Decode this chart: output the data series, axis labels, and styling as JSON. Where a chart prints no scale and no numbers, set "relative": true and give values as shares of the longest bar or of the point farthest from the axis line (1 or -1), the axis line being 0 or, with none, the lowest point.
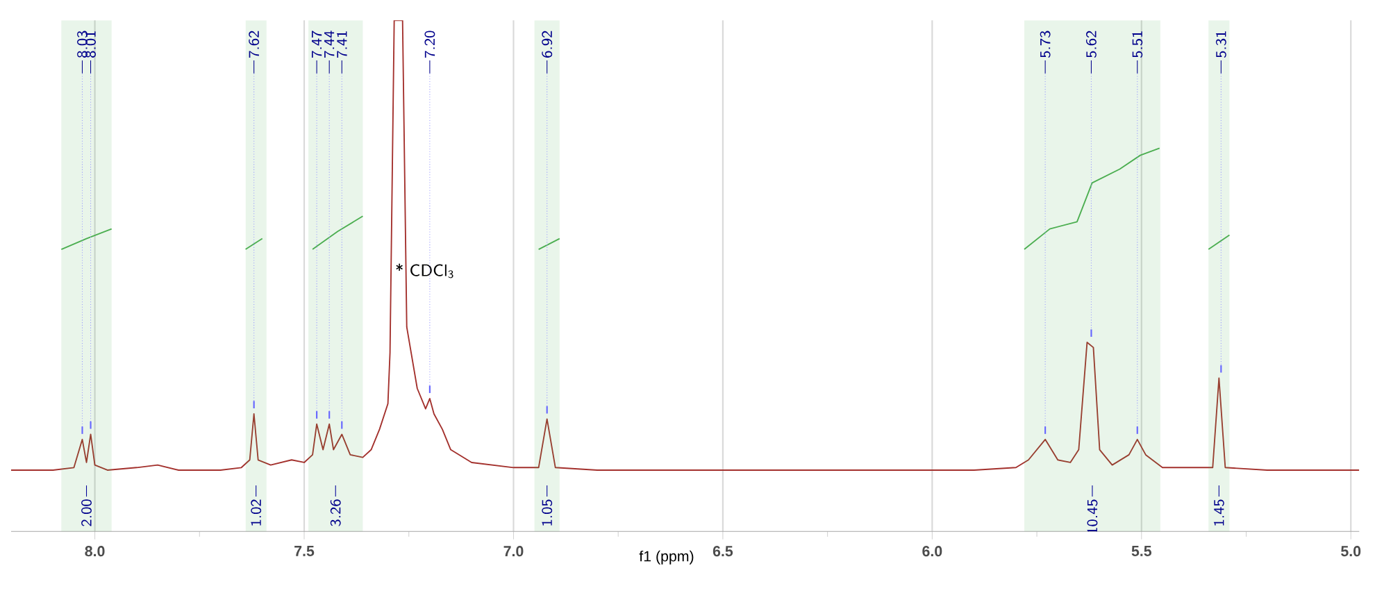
{
  "chart_data": {
    "type": "line",
    "relative": true,
    "xlabel": "f1 (ppm)",
    "grid": true,
    "marker": "none",
    "xlim": [
      8.2,
      4.98
    ],
    "xticks": [
      {
        "value": 8,
        "label": "8.0"
      },
      {
        "value": 7.75,
        "label": null
      },
      {
        "value": 7.5,
        "label": "7.5"
      },
      {
        "value": 7.25,
        "label": null
      },
      {
        "value": 7,
        "label": "7.0"
      },
      {
        "value": 6.75,
        "label": null
      },
      {
        "value": 6.5,
        "label": "6.5"
      },
      {
        "value": 6.25,
        "label": null
      },
      {
        "value": 6,
        "label": "6.0"
      },
      {
        "value": 5.75,
        "label": null
      },
      {
        "value": 5.5,
        "label": "5.5"
      },
      {
        "value": 5.25,
        "label": null
      },
      {
        "value": 5,
        "label": "5.0"
      }
    ],
    "series": [
      {
        "color": "#a3302c",
        "x": [
          8.2,
          8.1,
          8.05,
          8.03,
          8.02,
          8.01,
          8.0,
          7.97,
          7.9,
          7.85,
          7.8,
          7.7,
          7.65,
          7.63,
          7.62,
          7.61,
          7.58,
          7.53,
          7.5,
          7.48,
          7.47,
          7.455,
          7.44,
          7.43,
          7.41,
          7.39,
          7.36,
          7.34,
          7.32,
          7.3,
          7.295,
          7.285,
          7.265,
          7.255,
          7.23,
          7.21,
          7.2,
          7.19,
          7.17,
          7.15,
          7.1,
          7.0,
          6.94,
          6.92,
          6.9,
          6.8,
          6.5,
          6.2,
          5.9,
          5.8,
          5.77,
          5.73,
          5.7,
          5.67,
          5.65,
          5.63,
          5.615,
          5.6,
          5.57,
          5.53,
          5.51,
          5.49,
          5.45,
          5.33,
          5.315,
          5.3,
          5.2,
          4.98
        ],
        "values": [
          0.12,
          0.12,
          0.125,
          0.18,
          0.135,
          0.19,
          0.13,
          0.12,
          0.125,
          0.13,
          0.12,
          0.12,
          0.125,
          0.14,
          0.23,
          0.14,
          0.13,
          0.14,
          0.135,
          0.15,
          0.21,
          0.16,
          0.21,
          0.16,
          0.19,
          0.15,
          0.145,
          0.16,
          0.2,
          0.25,
          0.35,
          1.0,
          1.0,
          0.4,
          0.28,
          0.24,
          0.26,
          0.23,
          0.2,
          0.16,
          0.135,
          0.125,
          0.125,
          0.22,
          0.125,
          0.12,
          0.12,
          0.12,
          0.12,
          0.125,
          0.14,
          0.18,
          0.14,
          0.135,
          0.16,
          0.37,
          0.36,
          0.16,
          0.13,
          0.15,
          0.18,
          0.15,
          0.125,
          0.125,
          0.3,
          0.125,
          0.12,
          0.12
        ]
      },
      {
        "color": "#4caf50",
        "x": [
          8.08,
          8.02,
          7.96
        ],
        "values": [
          0.552,
          0.573,
          0.592
        ]
      },
      {
        "color": "#4caf50",
        "x": [
          7.64,
          7.6
        ],
        "values": [
          0.552,
          0.573
        ]
      },
      {
        "color": "#4caf50",
        "x": [
          7.48,
          7.42,
          7.36
        ],
        "values": [
          0.552,
          0.587,
          0.617
        ]
      },
      {
        "color": "#4caf50",
        "x": [
          6.94,
          6.89
        ],
        "values": [
          0.552,
          0.573
        ]
      },
      {
        "color": "#4caf50",
        "x": [
          5.78,
          5.719,
          5.654,
          5.618,
          5.552,
          5.503,
          5.457
        ],
        "values": [
          0.552,
          0.592,
          0.606,
          0.682,
          0.709,
          0.736,
          0.75
        ]
      },
      {
        "color": "#4caf50",
        "x": [
          5.34,
          5.29
        ],
        "values": [
          0.552,
          0.58
        ]
      }
    ],
    "bands": [
      {
        "axis": "x",
        "from": 8.08,
        "to": 7.96,
        "label": "2.00",
        "color": "#4caf50"
      },
      {
        "axis": "x",
        "from": 7.64,
        "to": 7.59,
        "label": "1.02",
        "color": "#4caf50"
      },
      {
        "axis": "x",
        "from": 7.49,
        "to": 7.36,
        "label": "3.26",
        "color": "#4caf50"
      },
      {
        "axis": "x",
        "from": 6.95,
        "to": 6.89,
        "label": "1.05",
        "color": "#4caf50"
      },
      {
        "axis": "x",
        "from": 5.78,
        "to": 5.455,
        "label": "10.45",
        "color": "#4caf50"
      },
      {
        "axis": "x",
        "from": 5.34,
        "to": 5.29,
        "label": "1.45",
        "color": "#4caf50"
      }
    ],
    "annotations": [
      "* CDCl$_{3}$",
      {
        "text": "8.03",
        "x": 8.03,
        "y": 0.18
      },
      {
        "text": "8.01",
        "x": 8.01,
        "y": 0.19
      },
      {
        "text": "7.62",
        "x": 7.62,
        "y": 0.23
      },
      {
        "text": "7.47",
        "x": 7.47,
        "y": 0.21
      },
      {
        "text": "7.44",
        "x": 7.44,
        "y": 0.21
      },
      {
        "text": "7.41",
        "x": 7.41,
        "y": 0.19
      },
      {
        "text": "7.20",
        "x": 7.2,
        "y": 0.26
      },
      {
        "text": "6.92",
        "x": 6.92,
        "y": 0.22
      },
      {
        "text": "5.73",
        "x": 5.73,
        "y": 0.18
      },
      {
        "text": "5.62",
        "x": 5.62,
        "y": 0.37
      },
      {
        "text": "5.51",
        "x": 5.51,
        "y": 0.18
      },
      {
        "text": "5.31",
        "x": 5.31,
        "y": 0.3
      }
    ]
  }
}
